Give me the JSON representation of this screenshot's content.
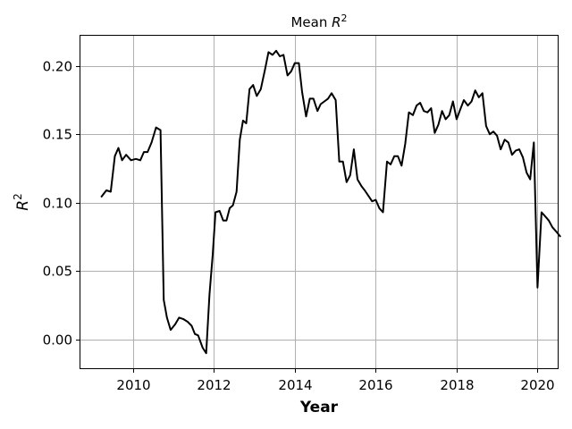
{
  "chart_data": {
    "type": "line",
    "title": "Mean R²",
    "title_parts": {
      "base": "Mean ",
      "var": "R",
      "sup": "2"
    },
    "xlabel": "Year",
    "ylabel_parts": {
      "var": "R",
      "sup": "2"
    },
    "xlim": [
      2008.7,
      2020.5
    ],
    "ylim": [
      -0.021,
      0.222
    ],
    "xticks": [
      2010,
      2012,
      2014,
      2016,
      2018,
      2020
    ],
    "xtick_labels": [
      "2010",
      "2012",
      "2014",
      "2016",
      "2018",
      "2020"
    ],
    "yticks": [
      0.0,
      0.05,
      0.1,
      0.15,
      0.2
    ],
    "ytick_labels": [
      "0.00",
      "0.05",
      "0.10",
      "0.15",
      "0.20"
    ],
    "grid": true,
    "line_color": "#000000",
    "grid_color": "#b0b0b0",
    "series": [
      {
        "points": [
          [
            2009.21,
            0.104
          ],
          [
            2009.34,
            0.109
          ],
          [
            2009.45,
            0.108
          ],
          [
            2009.55,
            0.134
          ],
          [
            2009.64,
            0.14
          ],
          [
            2009.73,
            0.131
          ],
          [
            2009.83,
            0.135
          ],
          [
            2009.95,
            0.131
          ],
          [
            2010.07,
            0.132
          ],
          [
            2010.18,
            0.131
          ],
          [
            2010.27,
            0.137
          ],
          [
            2010.36,
            0.137
          ],
          [
            2010.46,
            0.144
          ],
          [
            2010.57,
            0.155
          ],
          [
            2010.68,
            0.153
          ],
          [
            2010.76,
            0.029
          ],
          [
            2010.84,
            0.016
          ],
          [
            2010.93,
            0.007
          ],
          [
            2011.04,
            0.011
          ],
          [
            2011.14,
            0.016
          ],
          [
            2011.24,
            0.015
          ],
          [
            2011.35,
            0.013
          ],
          [
            2011.45,
            0.01
          ],
          [
            2011.53,
            0.004
          ],
          [
            2011.61,
            0.003
          ],
          [
            2011.72,
            -0.006
          ],
          [
            2011.81,
            -0.01
          ],
          [
            2011.89,
            0.033
          ],
          [
            2011.97,
            0.062
          ],
          [
            2012.04,
            0.093
          ],
          [
            2012.14,
            0.094
          ],
          [
            2012.23,
            0.087
          ],
          [
            2012.31,
            0.087
          ],
          [
            2012.39,
            0.096
          ],
          [
            2012.47,
            0.098
          ],
          [
            2012.56,
            0.108
          ],
          [
            2012.64,
            0.146
          ],
          [
            2012.72,
            0.16
          ],
          [
            2012.8,
            0.158
          ],
          [
            2012.88,
            0.183
          ],
          [
            2012.97,
            0.186
          ],
          [
            2013.06,
            0.178
          ],
          [
            2013.16,
            0.183
          ],
          [
            2013.26,
            0.197
          ],
          [
            2013.35,
            0.21
          ],
          [
            2013.45,
            0.208
          ],
          [
            2013.54,
            0.211
          ],
          [
            2013.63,
            0.207
          ],
          [
            2013.72,
            0.208
          ],
          [
            2013.82,
            0.193
          ],
          [
            2013.91,
            0.196
          ],
          [
            2014.0,
            0.202
          ],
          [
            2014.1,
            0.202
          ],
          [
            2014.18,
            0.181
          ],
          [
            2014.28,
            0.163
          ],
          [
            2014.37,
            0.176
          ],
          [
            2014.46,
            0.176
          ],
          [
            2014.56,
            0.167
          ],
          [
            2014.64,
            0.172
          ],
          [
            2014.73,
            0.174
          ],
          [
            2014.82,
            0.176
          ],
          [
            2014.91,
            0.18
          ],
          [
            2015.01,
            0.175
          ],
          [
            2015.1,
            0.13
          ],
          [
            2015.19,
            0.13
          ],
          [
            2015.28,
            0.115
          ],
          [
            2015.37,
            0.12
          ],
          [
            2015.46,
            0.139
          ],
          [
            2015.55,
            0.117
          ],
          [
            2015.65,
            0.112
          ],
          [
            2015.73,
            0.109
          ],
          [
            2015.82,
            0.105
          ],
          [
            2015.91,
            0.101
          ],
          [
            2016.0,
            0.102
          ],
          [
            2016.09,
            0.096
          ],
          [
            2016.18,
            0.093
          ],
          [
            2016.28,
            0.13
          ],
          [
            2016.37,
            0.128
          ],
          [
            2016.46,
            0.134
          ],
          [
            2016.55,
            0.134
          ],
          [
            2016.64,
            0.127
          ],
          [
            2016.73,
            0.143
          ],
          [
            2016.82,
            0.166
          ],
          [
            2016.92,
            0.164
          ],
          [
            2017.01,
            0.171
          ],
          [
            2017.1,
            0.173
          ],
          [
            2017.19,
            0.167
          ],
          [
            2017.28,
            0.166
          ],
          [
            2017.37,
            0.169
          ],
          [
            2017.46,
            0.151
          ],
          [
            2017.55,
            0.157
          ],
          [
            2017.64,
            0.167
          ],
          [
            2017.73,
            0.161
          ],
          [
            2017.82,
            0.164
          ],
          [
            2017.91,
            0.174
          ],
          [
            2018.0,
            0.161
          ],
          [
            2018.09,
            0.168
          ],
          [
            2018.18,
            0.175
          ],
          [
            2018.28,
            0.171
          ],
          [
            2018.37,
            0.174
          ],
          [
            2018.46,
            0.182
          ],
          [
            2018.55,
            0.177
          ],
          [
            2018.64,
            0.18
          ],
          [
            2018.73,
            0.156
          ],
          [
            2018.82,
            0.15
          ],
          [
            2018.91,
            0.152
          ],
          [
            2019.0,
            0.149
          ],
          [
            2019.09,
            0.139
          ],
          [
            2019.19,
            0.146
          ],
          [
            2019.28,
            0.144
          ],
          [
            2019.37,
            0.135
          ],
          [
            2019.46,
            0.138
          ],
          [
            2019.55,
            0.139
          ],
          [
            2019.64,
            0.133
          ],
          [
            2019.73,
            0.122
          ],
          [
            2019.82,
            0.117
          ],
          [
            2019.91,
            0.144
          ],
          [
            2020.0,
            0.038
          ],
          [
            2020.1,
            0.093
          ],
          [
            2020.19,
            0.09
          ],
          [
            2020.28,
            0.087
          ],
          [
            2020.37,
            0.082
          ],
          [
            2020.46,
            0.079
          ],
          [
            2020.57,
            0.075
          ]
        ]
      }
    ]
  }
}
